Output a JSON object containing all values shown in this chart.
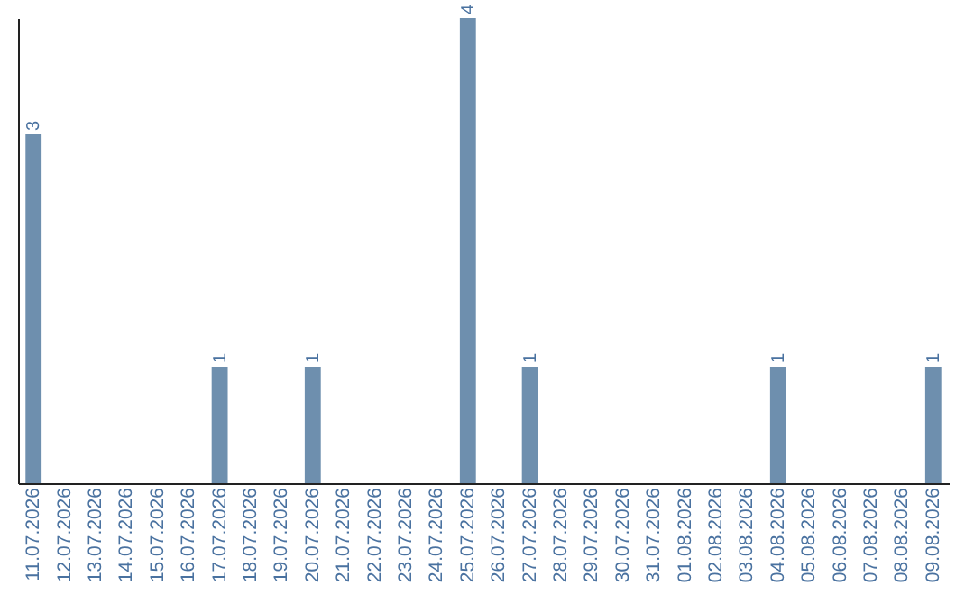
{
  "chart_data": {
    "type": "bar",
    "categories": [
      "11.07.2026",
      "12.07.2026",
      "13.07.2026",
      "14.07.2026",
      "15.07.2026",
      "16.07.2026",
      "17.07.2026",
      "18.07.2026",
      "19.07.2026",
      "20.07.2026",
      "21.07.2026",
      "22.07.2026",
      "23.07.2026",
      "24.07.2026",
      "25.07.2026",
      "26.07.2026",
      "27.07.2026",
      "28.07.2026",
      "29.07.2026",
      "30.07.2026",
      "31.07.2026",
      "01.08.2026",
      "02.08.2026",
      "03.08.2026",
      "04.08.2026",
      "05.08.2026",
      "06.08.2026",
      "07.08.2026",
      "08.08.2026",
      "09.08.2026"
    ],
    "values": [
      3,
      0,
      0,
      0,
      0,
      0,
      1,
      0,
      0,
      1,
      0,
      0,
      0,
      0,
      4,
      0,
      1,
      0,
      0,
      0,
      0,
      0,
      0,
      0,
      1,
      0,
      0,
      0,
      0,
      1
    ],
    "value_labels": [
      "3",
      null,
      null,
      null,
      null,
      null,
      "1",
      null,
      null,
      "1",
      null,
      null,
      null,
      null,
      "4",
      null,
      "1",
      null,
      null,
      null,
      null,
      null,
      null,
      null,
      "1",
      null,
      null,
      null,
      null,
      "1"
    ],
    "color": "#6e8fae",
    "ylim": [
      0,
      4
    ],
    "tick_labels": "x"
  }
}
